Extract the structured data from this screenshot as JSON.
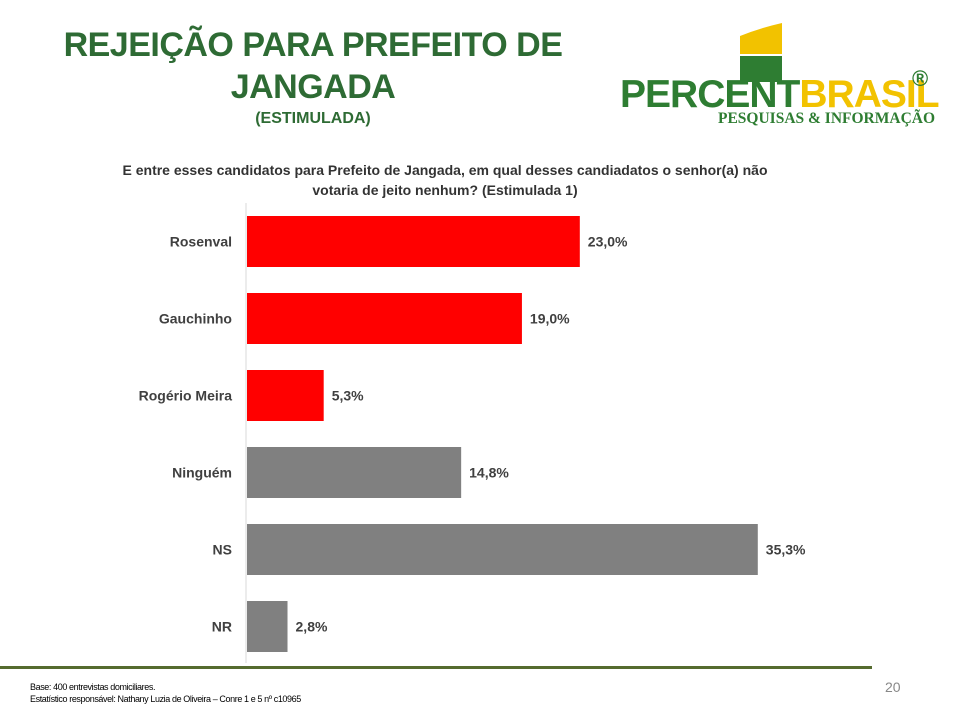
{
  "header": {
    "title_line1": "REJEIÇÃO PARA PREFEITO DE",
    "title_line2": "JANGADA",
    "subtitle": "(ESTIMULADA)"
  },
  "logo": {
    "name_part1": "PERCENT",
    "name_part2": "BRASIL",
    "registered": "®",
    "tagline": "PESQUISAS & INFORMAÇÃO"
  },
  "question": {
    "line1": "E entre esses candidatos para Prefeito de Jangada, em qual desses candiadatos o senhor(a) não",
    "line2": "votaria de jeito nenhum? (Estimulada 1)"
  },
  "chart_data": {
    "type": "bar",
    "orientation": "horizontal",
    "categories": [
      "Rosenval",
      "Gauchinho",
      "Rogério Meira",
      "Ninguém",
      "NS",
      "NR"
    ],
    "values": [
      23.0,
      19.0,
      5.3,
      14.8,
      35.3,
      2.8
    ],
    "labels": [
      "23,0%",
      "19,0%",
      "5,3%",
      "14,8%",
      "35,3%",
      "2,8%"
    ],
    "colors": [
      "#ff0000",
      "#ff0000",
      "#ff0000",
      "#808080",
      "#808080",
      "#808080"
    ],
    "xlim": [
      0,
      40
    ],
    "grid": false,
    "legend": "none"
  },
  "footer": {
    "base": "Base: 400 entrevistas domiciliares.",
    "statistician": "Estatístico responsável: Nathany Luzia de Oliveira – Conre 1 e 5 nº c10965",
    "page_number": "20"
  },
  "colors": {
    "title": "#2e6b34",
    "footer_line": "#556b2f",
    "candidate_bar": "#ff0000",
    "other_bar": "#808080"
  }
}
